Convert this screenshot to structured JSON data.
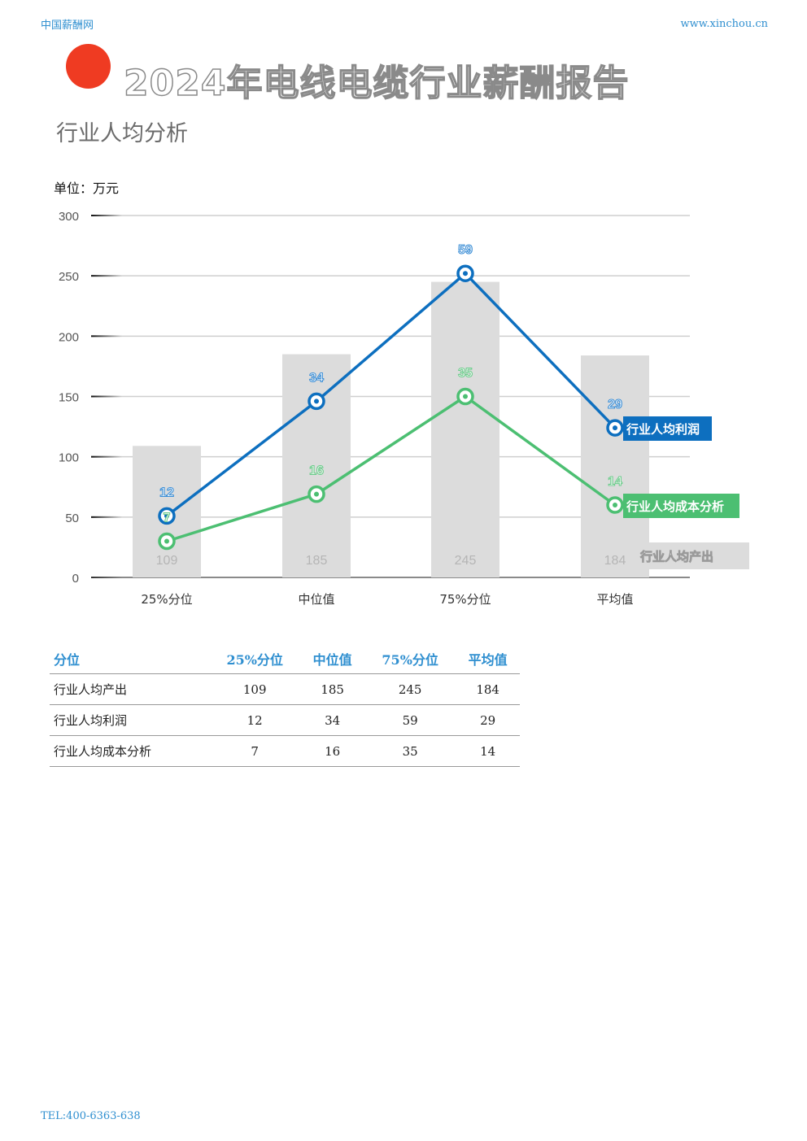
{
  "header": {
    "left": "中国薪酬网",
    "right": "www.xinchou.cn"
  },
  "title": "2024年电线电缆行业薪酬报告",
  "subtitle": "行业人均分析",
  "unit": "单位：万元",
  "chart_data": {
    "type": "bar",
    "categories": [
      "25%分位",
      "中位值",
      "75%分位",
      "平均值"
    ],
    "ylim": [
      0,
      300
    ],
    "yticks": [
      0,
      50,
      100,
      150,
      200,
      250,
      300
    ],
    "grid": true,
    "series": [
      {
        "name": "行业人均产出",
        "kind": "bar",
        "color": "#dcdcdc",
        "label_color": "#b5b5b5",
        "values": [
          109,
          185,
          245,
          184
        ]
      },
      {
        "name": "行业人均利润",
        "kind": "line",
        "color": "#0d6fbf",
        "label_color": "#3d8fd6",
        "values": [
          12,
          34,
          59,
          29
        ],
        "plot_positions": [
          51,
          146,
          252,
          124
        ]
      },
      {
        "name": "行业人均成本分析",
        "kind": "line",
        "color": "#4cbf72",
        "label_color": "#6ccb8b",
        "values": [
          7,
          16,
          35,
          14
        ],
        "plot_positions": [
          30,
          69,
          150,
          60
        ]
      }
    ]
  },
  "table": {
    "headers": [
      "分位",
      "25%分位",
      "中位值",
      "75%分位",
      "平均值"
    ],
    "rows": [
      [
        "行业人均产出",
        "109",
        "185",
        "245",
        "184"
      ],
      [
        "行业人均利润",
        "12",
        "34",
        "59",
        "29"
      ],
      [
        "行业人均成本分析",
        "7",
        "16",
        "35",
        "14"
      ]
    ]
  },
  "footer": "TEL:400-6363-638"
}
